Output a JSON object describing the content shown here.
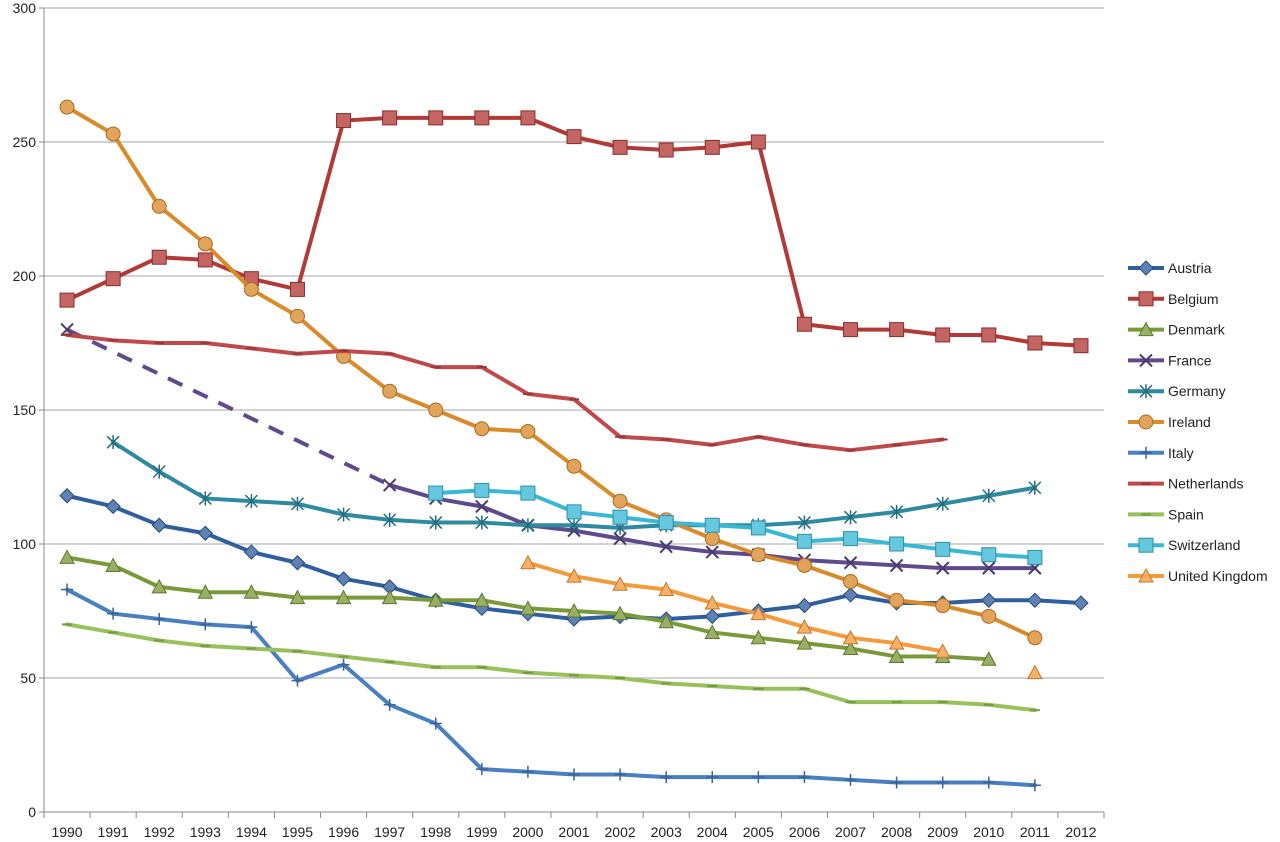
{
  "chart_data": {
    "type": "line",
    "title": "",
    "xlabel": "",
    "ylabel": "",
    "ylim": [
      0,
      300
    ],
    "y_ticks": [
      "0",
      "50",
      "100",
      "150",
      "200",
      "250",
      "300"
    ],
    "x": [
      "1990",
      "1991",
      "1992",
      "1993",
      "1994",
      "1995",
      "1996",
      "1997",
      "1998",
      "1999",
      "2000",
      "2001",
      "2002",
      "2003",
      "2004",
      "2005",
      "2006",
      "2007",
      "2008",
      "2009",
      "2010",
      "2011",
      "2012"
    ],
    "grid": "horizontal",
    "legend_position": "right",
    "series": [
      {
        "name": "Austria",
        "color": "#2f5f9e",
        "marker": "diamond",
        "values": [
          118,
          114,
          107,
          104,
          97,
          93,
          87,
          84,
          79,
          76,
          74,
          72,
          73,
          72,
          73,
          75,
          77,
          81,
          78,
          78,
          79,
          79,
          78
        ]
      },
      {
        "name": "Belgium",
        "color": "#b13a37",
        "marker": "square",
        "values": [
          191,
          199,
          207,
          206,
          199,
          195,
          258,
          259,
          259,
          259,
          259,
          252,
          248,
          247,
          248,
          250,
          182,
          180,
          180,
          178,
          178,
          175,
          174
        ]
      },
      {
        "name": "Denmark",
        "color": "#7a9a3a",
        "marker": "triangle",
        "values": [
          95,
          92,
          84,
          82,
          82,
          80,
          80,
          80,
          79,
          79,
          76,
          75,
          74,
          71,
          67,
          65,
          63,
          61,
          58,
          58,
          57,
          null,
          null
        ]
      },
      {
        "name": "France",
        "color": "#5f4a8b",
        "marker": "x",
        "dashed_gap": [
          0,
          7
        ],
        "values": [
          180,
          null,
          null,
          null,
          null,
          null,
          null,
          122,
          117,
          114,
          107,
          105,
          102,
          99,
          97,
          96,
          94,
          93,
          92,
          91,
          91,
          91,
          null
        ]
      },
      {
        "name": "Germany",
        "color": "#2e8aa0",
        "marker": "star",
        "values": [
          null,
          138,
          127,
          117,
          116,
          115,
          111,
          109,
          108,
          108,
          107,
          107,
          106,
          107,
          107,
          107,
          108,
          110,
          112,
          115,
          118,
          121,
          null
        ]
      },
      {
        "name": "Ireland",
        "color": "#d98a2b",
        "marker": "circle",
        "values": [
          263,
          253,
          226,
          212,
          195,
          185,
          170,
          157,
          150,
          143,
          142,
          129,
          116,
          109,
          102,
          96,
          92,
          86,
          79,
          77,
          73,
          65,
          null
        ]
      },
      {
        "name": "Italy",
        "color": "#4a7fc1",
        "marker": "plus",
        "values": [
          83,
          74,
          72,
          70,
          69,
          49,
          55,
          40,
          33,
          16,
          15,
          14,
          14,
          13,
          13,
          13,
          13,
          12,
          11,
          11,
          11,
          10,
          null
        ]
      },
      {
        "name": "Netherlands",
        "color": "#c0494b",
        "marker": "dash",
        "values": [
          178,
          176,
          175,
          175,
          173,
          171,
          172,
          171,
          166,
          166,
          156,
          154,
          140,
          139,
          137,
          140,
          137,
          135,
          137,
          139,
          null,
          null,
          null
        ]
      },
      {
        "name": "Spain",
        "color": "#98c15a",
        "marker": "dash",
        "values": [
          70,
          67,
          64,
          62,
          61,
          60,
          58,
          56,
          54,
          54,
          52,
          51,
          50,
          48,
          47,
          46,
          46,
          41,
          41,
          41,
          40,
          38,
          null
        ]
      },
      {
        "name": "Switzerland",
        "color": "#39b8d6",
        "marker": "square",
        "values": [
          null,
          null,
          null,
          null,
          null,
          null,
          null,
          null,
          119,
          120,
          119,
          112,
          110,
          108,
          107,
          106,
          101,
          102,
          100,
          98,
          96,
          95,
          null
        ]
      },
      {
        "name": "United Kingdom",
        "color": "#f59a3a",
        "marker": "triangle",
        "values": [
          null,
          null,
          null,
          null,
          null,
          null,
          null,
          null,
          null,
          null,
          93,
          88,
          85,
          83,
          78,
          74,
          69,
          65,
          63,
          60,
          null,
          52,
          null
        ]
      }
    ]
  }
}
